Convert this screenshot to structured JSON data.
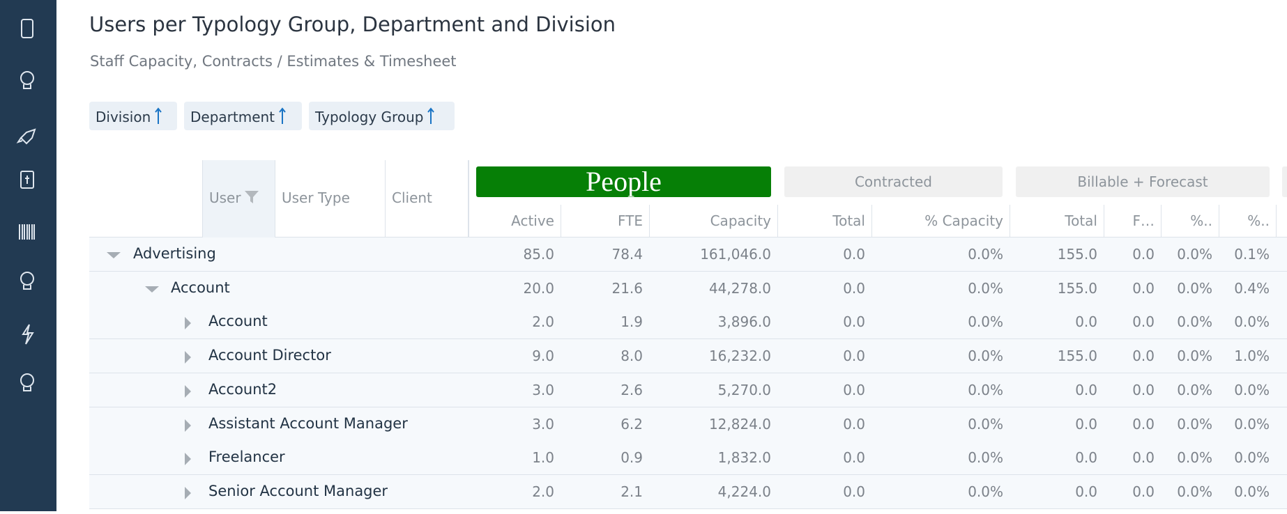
{
  "header": {
    "title": "Users per Typology Group, Department and Division",
    "subtitle": "Staff Capacity, Contracts / Estimates & Timesheet"
  },
  "sort_chips": [
    "Division",
    "Department",
    "Typology Group"
  ],
  "table": {
    "row_headers": [
      "User",
      "User Type",
      "Client"
    ],
    "group_headers": [
      "People",
      "Contracted",
      "Billable + Forecast"
    ],
    "columns": [
      "Active",
      "FTE",
      "Capacity",
      "Total",
      "% Capacity",
      "Total",
      "F…",
      "%..",
      "%.."
    ],
    "rows": [
      {
        "label": "Advertising",
        "values": [
          "85.0",
          "78.4",
          "161,046.0",
          "0.0",
          "0.0%",
          "155.0",
          "0.0",
          "0.0%",
          "0.1%"
        ]
      },
      {
        "label": "Account",
        "values": [
          "20.0",
          "21.6",
          "44,278.0",
          "0.0",
          "0.0%",
          "155.0",
          "0.0",
          "0.0%",
          "0.4%"
        ]
      },
      {
        "label": "Account",
        "values": [
          "2.0",
          "1.9",
          "3,896.0",
          "0.0",
          "0.0%",
          "0.0",
          "0.0",
          "0.0%",
          "0.0%"
        ]
      },
      {
        "label": "Account Director",
        "values": [
          "9.0",
          "8.0",
          "16,232.0",
          "0.0",
          "0.0%",
          "155.0",
          "0.0",
          "0.0%",
          "1.0%"
        ]
      },
      {
        "label": "Account2",
        "values": [
          "3.0",
          "2.6",
          "5,270.0",
          "0.0",
          "0.0%",
          "0.0",
          "0.0",
          "0.0%",
          "0.0%"
        ]
      },
      {
        "label": "Assistant Account Manager",
        "values": [
          "3.0",
          "6.2",
          "12,824.0",
          "0.0",
          "0.0%",
          "0.0",
          "0.0",
          "0.0%",
          "0.0%"
        ]
      },
      {
        "label": "Freelancer",
        "values": [
          "1.0",
          "0.9",
          "1,832.0",
          "0.0",
          "0.0%",
          "0.0",
          "0.0",
          "0.0%",
          "0.0%"
        ]
      },
      {
        "label": "Senior Account Manager",
        "values": [
          "2.0",
          "2.1",
          "4,224.0",
          "0.0",
          "0.0%",
          "0.0",
          "0.0",
          "0.0%",
          "0.0%"
        ]
      }
    ]
  }
}
